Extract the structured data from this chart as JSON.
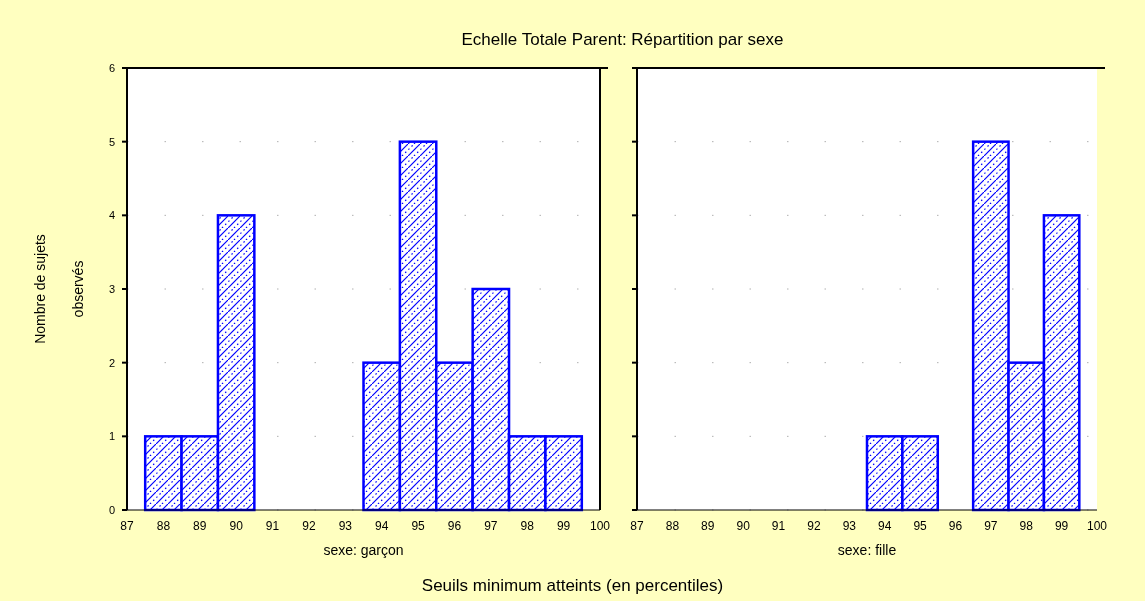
{
  "chart_data": [
    {
      "type": "histogram",
      "title": "Echelle Totale Parent: Répartition par sexe",
      "xlabel": "sexe: garçon",
      "ylabel": "Nombre de sujets\nobservés",
      "annotations": [
        "Seuils minimum atteints (en percentiles)"
      ],
      "bins": [
        87.5,
        88.5,
        89.5,
        90.5,
        91.5,
        92.5,
        93.5,
        94.5,
        95.5,
        96.5,
        97.5,
        98.5,
        99.5
      ],
      "values": [
        1,
        1,
        4,
        0,
        0,
        0,
        2,
        5,
        2,
        3,
        1,
        1
      ],
      "color": "#0000ff",
      "xlim": [
        87,
        100
      ],
      "xticks": [
        87,
        88,
        89,
        90,
        91,
        92,
        93,
        94,
        95,
        96,
        97,
        98,
        99,
        100
      ],
      "ylim": [
        0,
        6
      ],
      "yticks": [
        0,
        1,
        2,
        3,
        4,
        5,
        6
      ],
      "grid": "y"
    },
    {
      "type": "histogram",
      "xlabel": "sexe: fille",
      "bins": [
        87.5,
        88.5,
        89.5,
        90.5,
        91.5,
        92.5,
        93.5,
        94.5,
        95.5,
        96.5,
        97.5,
        98.5,
        99.5
      ],
      "values": [
        0,
        0,
        0,
        0,
        0,
        0,
        1,
        1,
        0,
        5,
        2,
        4
      ],
      "color": "#0000ff",
      "xlim": [
        87,
        100
      ],
      "xticks": [
        87,
        88,
        89,
        90,
        91,
        92,
        93,
        94,
        95,
        96,
        97,
        98,
        99,
        100
      ],
      "ylim": [
        0,
        6
      ],
      "yticks": [
        0,
        1,
        2,
        3,
        4,
        5,
        6
      ],
      "grid": "y",
      "tick_labels": "x"
    }
  ]
}
